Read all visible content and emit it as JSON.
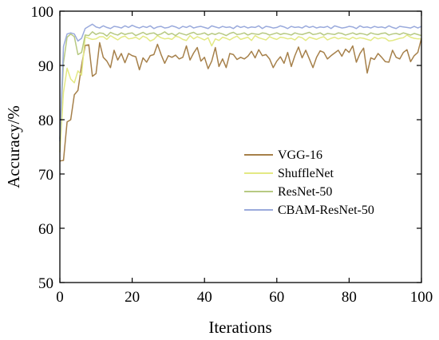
{
  "chart_data": {
    "type": "line",
    "xlabel": "Iterations",
    "ylabel": "Accuracy/%",
    "xlim": [
      0,
      100
    ],
    "ylim": [
      50,
      100
    ],
    "xticks": [
      0,
      20,
      40,
      60,
      80,
      100
    ],
    "yticks": [
      50,
      60,
      70,
      80,
      90,
      100
    ],
    "grid": false,
    "legend_position": "center-right",
    "x": [
      0,
      1,
      2,
      3,
      4,
      5,
      6,
      7,
      8,
      9,
      10,
      11,
      12,
      13,
      14,
      15,
      16,
      17,
      18,
      19,
      20,
      21,
      22,
      23,
      24,
      25,
      26,
      27,
      28,
      29,
      30,
      31,
      32,
      33,
      34,
      35,
      36,
      37,
      38,
      39,
      40,
      41,
      42,
      43,
      44,
      45,
      46,
      47,
      48,
      49,
      50,
      51,
      52,
      53,
      54,
      55,
      56,
      57,
      58,
      59,
      60,
      61,
      62,
      63,
      64,
      65,
      66,
      67,
      68,
      69,
      70,
      71,
      72,
      73,
      74,
      75,
      76,
      77,
      78,
      79,
      80,
      81,
      82,
      83,
      84,
      85,
      86,
      87,
      88,
      89,
      90,
      91,
      92,
      93,
      94,
      95,
      96,
      97,
      98,
      99,
      100
    ],
    "series": [
      {
        "name": "VGG-16",
        "color": "#a6804a",
        "values": [
          72.4,
          72.5,
          79.6,
          80.0,
          84.6,
          85.4,
          90.0,
          93.7,
          93.8,
          88.0,
          88.5,
          94.2,
          91.5,
          90.8,
          89.6,
          92.8,
          91.0,
          92.2,
          90.5,
          92.2,
          91.8,
          91.6,
          89.2,
          91.4,
          90.6,
          91.8,
          92.0,
          93.9,
          92.0,
          90.4,
          91.8,
          91.5,
          91.9,
          91.2,
          91.5,
          93.6,
          91.0,
          92.3,
          93.3,
          90.8,
          91.5,
          89.4,
          90.8,
          93.3,
          89.8,
          91.2,
          89.6,
          92.2,
          92.0,
          91.1,
          91.5,
          91.2,
          91.7,
          92.6,
          91.4,
          92.9,
          91.8,
          92.0,
          91.2,
          89.6,
          90.8,
          91.6,
          90.4,
          92.4,
          89.8,
          91.8,
          93.4,
          91.4,
          92.8,
          91.2,
          89.6,
          91.5,
          92.7,
          92.4,
          91.2,
          91.8,
          92.3,
          92.8,
          91.7,
          93.0,
          92.4,
          93.6,
          90.6,
          92.2,
          93.2,
          88.6,
          91.4,
          91.1,
          92.2,
          91.5,
          90.7,
          90.6,
          92.8,
          91.5,
          91.2,
          92.4,
          92.9,
          90.7,
          91.8,
          92.4,
          95.0
        ]
      },
      {
        "name": "ShuffleNet",
        "color": "#e3e984",
        "values": [
          74.0,
          85.0,
          89.5,
          87.5,
          86.8,
          89.0,
          88.2,
          95.3,
          95.0,
          94.8,
          94.9,
          95.3,
          95.3,
          94.8,
          95.5,
          95.1,
          94.7,
          95.2,
          95.4,
          94.9,
          95.0,
          95.2,
          94.8,
          95.4,
          95.1,
          94.5,
          94.8,
          95.5,
          95.1,
          94.9,
          95.0,
          94.8,
          95.4,
          95.2,
          94.8,
          94.6,
          95.5,
          94.9,
          95.3,
          95.0,
          94.7,
          95.1,
          93.6,
          94.9,
          94.6,
          95.2,
          95.0,
          94.7,
          95.1,
          95.4,
          94.8,
          95.0,
          95.2,
          94.6,
          95.5,
          95.1,
          94.9,
          94.7,
          95.3,
          95.0,
          94.8,
          95.2,
          95.1,
          94.9,
          95.0,
          94.7,
          95.3,
          95.1,
          94.6,
          95.2,
          95.0,
          94.8,
          95.1,
          95.3,
          94.7,
          95.0,
          95.2,
          94.9,
          95.1,
          95.0,
          94.8,
          95.2,
          94.9,
          95.1,
          95.0,
          94.8,
          94.6,
          95.2,
          94.9,
          95.1,
          95.0,
          94.5,
          94.6,
          94.8,
          95.0,
          95.1,
          95.6,
          95.2,
          95.0,
          94.9,
          94.9
        ]
      },
      {
        "name": "ResNet-50",
        "color": "#b7c982",
        "values": [
          76.5,
          90.5,
          95.2,
          95.8,
          95.3,
          92.0,
          92.4,
          95.6,
          95.5,
          96.2,
          95.7,
          96.0,
          95.9,
          95.4,
          96.1,
          95.8,
          95.6,
          96.0,
          95.7,
          95.9,
          96.0,
          95.5,
          95.8,
          96.1,
          95.7,
          95.9,
          96.0,
          95.6,
          95.8,
          96.2,
          95.7,
          95.9,
          95.5,
          96.0,
          95.8,
          95.6,
          95.9,
          96.1,
          95.7,
          95.8,
          96.0,
          95.6,
          95.9,
          95.7,
          96.0,
          95.8,
          95.5,
          95.9,
          96.1,
          95.7,
          95.8,
          96.0,
          95.6,
          95.9,
          95.8,
          95.7,
          96.0,
          95.9,
          95.6,
          95.8,
          96.0,
          95.7,
          95.9,
          95.8,
          95.6,
          96.0,
          95.8,
          95.7,
          95.9,
          96.1,
          95.7,
          95.8,
          96.0,
          95.6,
          95.9,
          95.8,
          95.7,
          96.0,
          95.9,
          95.6,
          95.8,
          96.0,
          95.7,
          95.9,
          95.8,
          95.6,
          96.0,
          95.8,
          95.7,
          95.9,
          96.0,
          95.6,
          95.8,
          95.9,
          95.7,
          96.0,
          95.8,
          95.6,
          95.9,
          95.7,
          95.5
        ]
      },
      {
        "name": "CBAM-ResNet-50",
        "color": "#9aaadc",
        "values": [
          76.0,
          93.5,
          95.8,
          96.0,
          95.8,
          94.5,
          95.0,
          96.8,
          97.2,
          97.6,
          97.1,
          96.9,
          97.3,
          97.0,
          96.8,
          97.2,
          97.1,
          96.9,
          97.3,
          97.0,
          97.4,
          97.1,
          96.9,
          97.2,
          97.0,
          97.3,
          96.8,
          97.1,
          97.2,
          96.9,
          97.0,
          97.3,
          97.1,
          96.8,
          97.2,
          97.0,
          97.3,
          96.9,
          97.1,
          97.2,
          97.0,
          96.8,
          97.3,
          97.1,
          96.9,
          97.2,
          97.0,
          97.1,
          96.8,
          97.3,
          97.0,
          97.2,
          96.9,
          97.1,
          97.0,
          97.3,
          96.8,
          97.2,
          97.1,
          96.9,
          97.0,
          97.3,
          97.1,
          96.8,
          97.2,
          97.0,
          97.1,
          96.9,
          97.3,
          97.0,
          97.2,
          96.9,
          97.1,
          97.0,
          97.2,
          96.8,
          97.3,
          97.1,
          96.9,
          97.0,
          97.2,
          97.1,
          96.8,
          97.3,
          97.0,
          97.1,
          96.9,
          97.2,
          97.0,
          97.1,
          96.9,
          97.3,
          97.0,
          96.8,
          97.2,
          97.1,
          97.0,
          96.9,
          97.2,
          96.9,
          97.2
        ]
      }
    ]
  }
}
